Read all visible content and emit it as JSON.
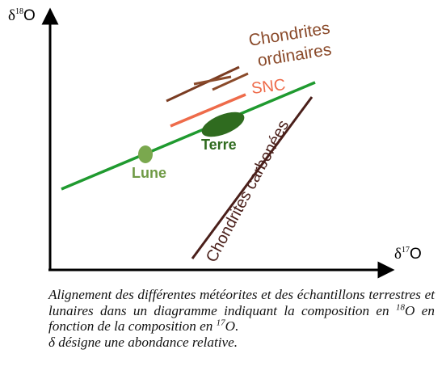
{
  "axes": {
    "y_label": {
      "symbol": "δ",
      "mass": "18",
      "element": "O"
    },
    "x_label": {
      "symbol": "δ",
      "mass": "17",
      "element": "O"
    }
  },
  "labels": {
    "chondrites_ordinaires_line1": "Chondrites",
    "chondrites_ordinaires_line2": "ordinaires",
    "snc": "SNC",
    "terre": "Terre",
    "lune": "Lune",
    "chondrites_carbonees": "Chondrites carbonées"
  },
  "caption": {
    "part1": "Alignement des différentes météorites et des échantillons terrestres et lunaires dans un diagramme indiquant la composition en ",
    "sup1": "18",
    "part2": "O en fonction de la composition en ",
    "sup2": "17",
    "part3": "O.",
    "line2": "δ désigne une abondance relative."
  },
  "colors": {
    "axis": "#000000",
    "terrestrial_line": "#1f9a2f",
    "terre_marker": "#2f6b1f",
    "terre_label": "#2f6b1f",
    "lune_marker": "#7aa84e",
    "lune_label": "#6f9a45",
    "chondrites_ordinaires": "#8a4a2a",
    "snc": "#ee6b4a",
    "chondrites_carbonees": "#4a1f1a"
  }
}
